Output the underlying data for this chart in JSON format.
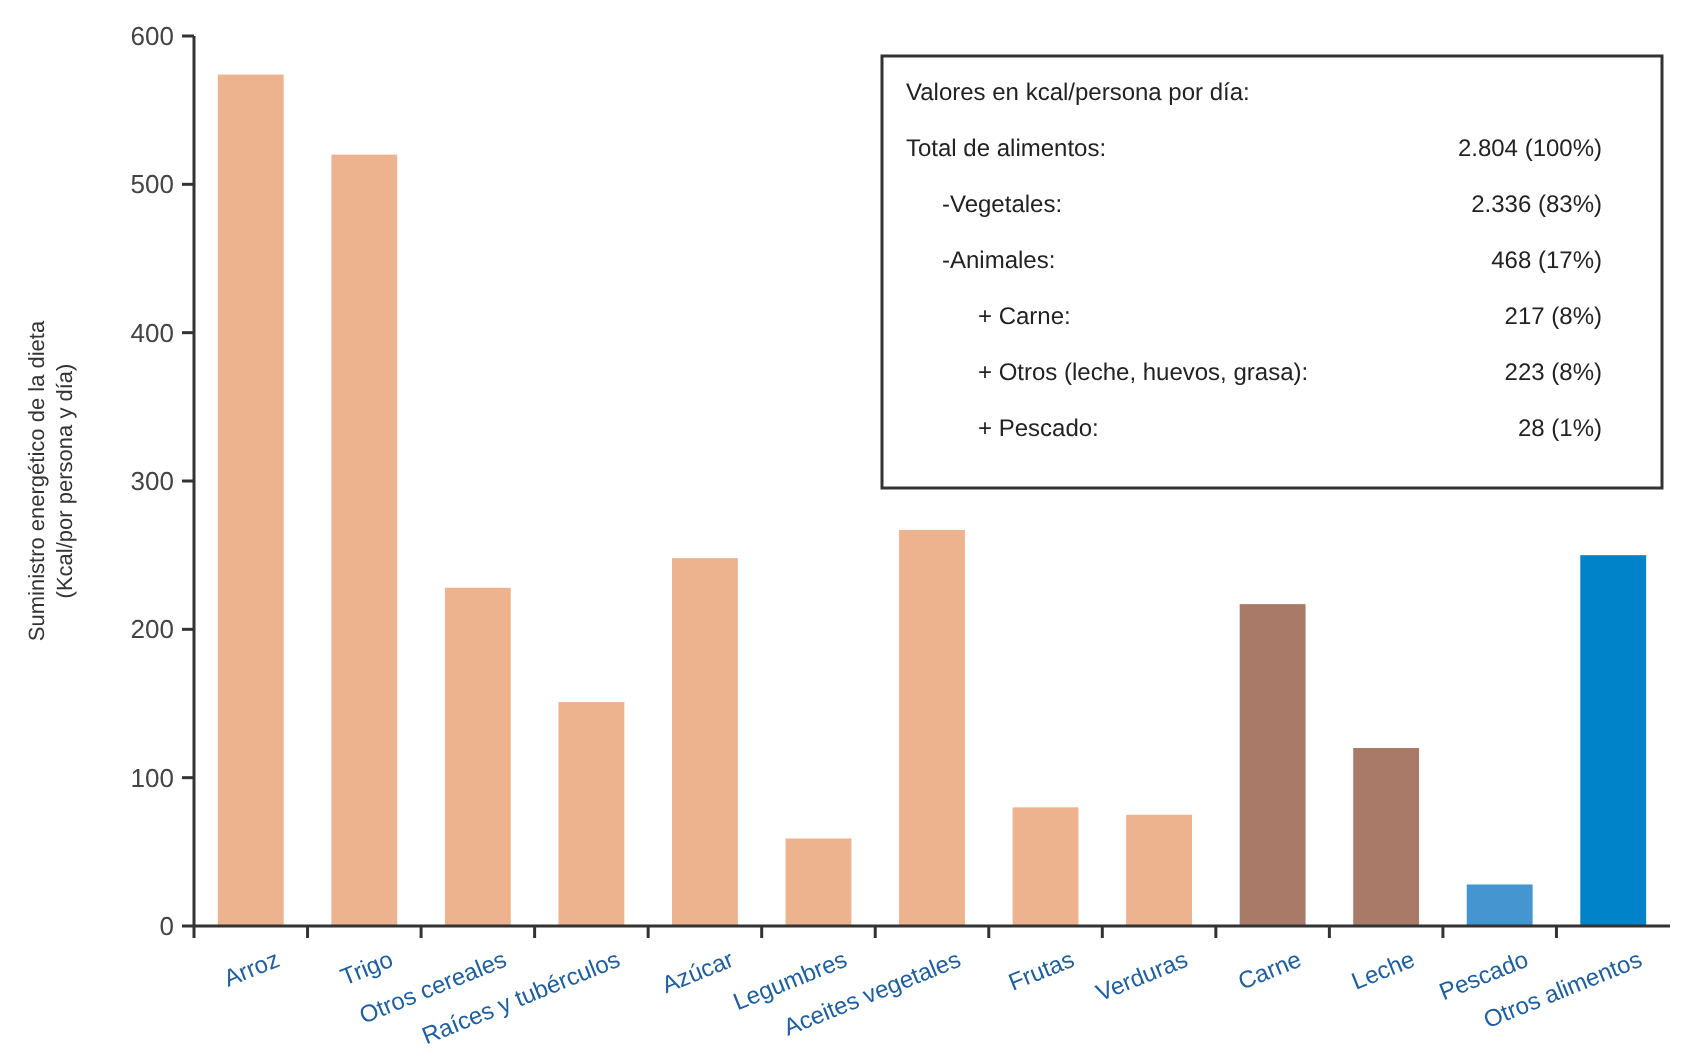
{
  "chart_data": {
    "type": "bar",
    "ylabel": "Suministro energético de la dieta\n(Kcal/por persona y día)",
    "categories": [
      "Arroz",
      "Trigo",
      "Otros cereales",
      "Raíces y tubérculos",
      "Azúcar",
      "Legumbres",
      "Aceites vegetales",
      "Frutas",
      "Verduras",
      "Carne",
      "Leche",
      "Pescado",
      "Otros alimentos"
    ],
    "values": [
      574,
      520,
      228,
      151,
      248,
      59,
      267,
      80,
      75,
      217,
      120,
      28,
      250
    ],
    "colors": [
      "#edb38e",
      "#edb38e",
      "#edb38e",
      "#edb38e",
      "#edb38e",
      "#edb38e",
      "#edb38e",
      "#edb38e",
      "#edb38e",
      "#a87a67",
      "#a87a67",
      "#4595d0",
      "#0083c8"
    ],
    "ylim": [
      0,
      600
    ],
    "yticks": [
      0,
      100,
      200,
      300,
      400,
      500,
      600
    ],
    "grid": false,
    "annotations": [
      "Valores en kcal/persona por día:",
      "Total de alimentos:",
      "2.804 (100%)",
      "-Vegetales:",
      "2.336 (83%)",
      "-Animales:",
      "468 (17%)",
      "+  Carne:",
      "217 (8%)",
      "+  Otros (leche, huevos, grasa):",
      "223 (8%)",
      "+  Pescado:",
      "28 (1%)"
    ]
  }
}
